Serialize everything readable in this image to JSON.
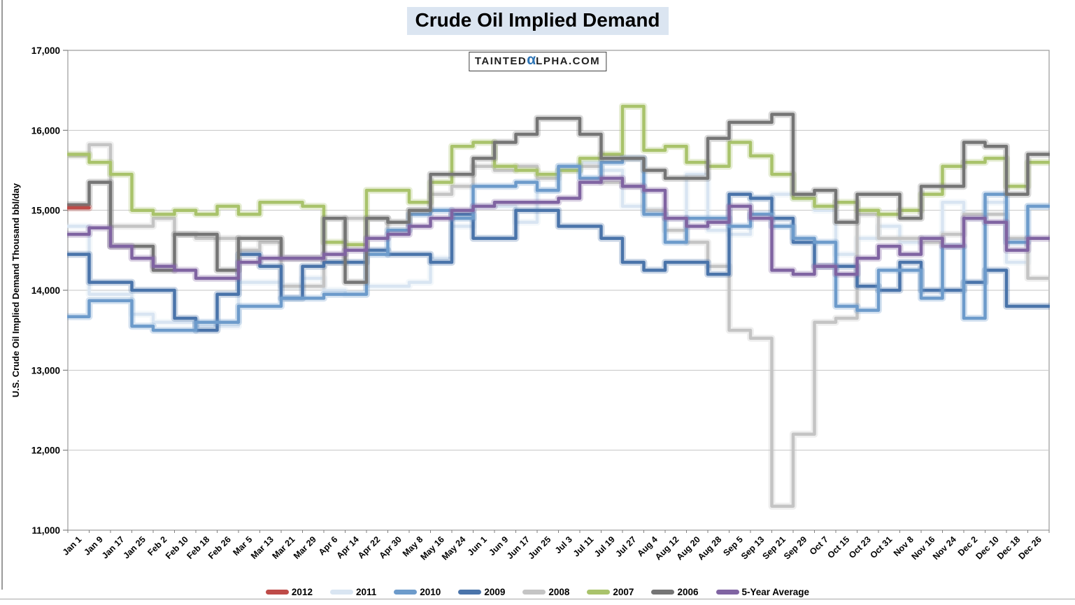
{
  "title": "Crude Oil Implied Demand",
  "watermark": {
    "prefix": "TAINTED",
    "alpha": "α",
    "suffix": "LPHA.COM"
  },
  "y_axis": {
    "title": "U.S. Crude Oil Implied Demand Thousand bbl/day",
    "min": 11000,
    "max": 17000,
    "tick_step": 1000,
    "tick_labels": [
      "11,000",
      "12,000",
      "13,000",
      "14,000",
      "15,000",
      "16,000",
      "17,000"
    ]
  },
  "chart_data": {
    "type": "line",
    "line_style": "step-mid",
    "grid": "horizontal",
    "legend_position": "bottom",
    "ylim": [
      11000,
      17000
    ],
    "categories": [
      "Jan 1",
      "Jan 9",
      "Jan 17",
      "Jan 25",
      "Feb 2",
      "Feb 10",
      "Feb 18",
      "Feb 26",
      "Mar 5",
      "Mar 13",
      "Mar 21",
      "Mar 29",
      "Apr 6",
      "Apr 14",
      "Apr 22",
      "Apr 30",
      "May 8",
      "May 16",
      "May 24",
      "Jun 1",
      "Jun 9",
      "Jun 17",
      "Jun 25",
      "Jul 3",
      "Jul 11",
      "Jul 19",
      "Jul 27",
      "Aug 4",
      "Aug 12",
      "Aug 20",
      "Aug 28",
      "Sep 5",
      "Sep 13",
      "Sep 21",
      "Sep 29",
      "Oct 7",
      "Oct 15",
      "Oct 23",
      "Oct 31",
      "Nov 8",
      "Nov 16",
      "Nov 24",
      "Dec 2",
      "Dec 10",
      "Dec 18",
      "Dec 26"
    ],
    "series": [
      {
        "name": "2012",
        "color": "#BE4B48",
        "values": [
          15030,
          null,
          null,
          null,
          null,
          null,
          null,
          null,
          null,
          null,
          null,
          null,
          null,
          null,
          null,
          null,
          null,
          null,
          null,
          null,
          null,
          null,
          null,
          null,
          null,
          null,
          null,
          null,
          null,
          null,
          null,
          null,
          null,
          null,
          null,
          null,
          null,
          null,
          null,
          null,
          null,
          null,
          null,
          null,
          null,
          null
        ]
      },
      {
        "name": "2011",
        "color": "#D9E5F2",
        "values": [
          14800,
          13950,
          13950,
          13700,
          13600,
          13600,
          13550,
          13550,
          14100,
          14100,
          14050,
          14150,
          14000,
          13950,
          14050,
          14050,
          14100,
          14400,
          14800,
          15050,
          15050,
          14850,
          15250,
          15550,
          15600,
          15500,
          15050,
          15000,
          14900,
          15450,
          14750,
          14700,
          15150,
          15200,
          15150,
          15000,
          14450,
          14650,
          14800,
          14600,
          14650,
          15100,
          14900,
          15100,
          14350,
          15050
        ]
      },
      {
        "name": "2010",
        "color": "#6D9BCB",
        "values": [
          13670,
          13870,
          13870,
          13550,
          13500,
          13500,
          13600,
          13600,
          13800,
          13800,
          13900,
          13900,
          13950,
          13950,
          14450,
          14750,
          14950,
          15000,
          14900,
          15300,
          15300,
          15350,
          15250,
          15550,
          15400,
          15600,
          15650,
          14950,
          14600,
          14900,
          14900,
          14800,
          14950,
          14800,
          14650,
          14600,
          13800,
          13750,
          14250,
          14250,
          13900,
          14550,
          13650,
          15200,
          14600,
          15050
        ]
      },
      {
        "name": "2009",
        "color": "#4A74AA",
        "values": [
          14450,
          14100,
          14100,
          14000,
          14000,
          13650,
          13500,
          13950,
          14450,
          14300,
          13900,
          14300,
          14350,
          14350,
          14500,
          14450,
          14450,
          14350,
          14950,
          14650,
          14650,
          15000,
          15000,
          14800,
          14800,
          14650,
          14350,
          14250,
          14350,
          14350,
          14200,
          15200,
          15150,
          14900,
          14600,
          14300,
          14300,
          14050,
          14000,
          14350,
          14000,
          14000,
          14100,
          14250,
          13800,
          13800
        ]
      },
      {
        "name": "2008",
        "color": "#C4C4C4",
        "values": [
          15680,
          15820,
          14800,
          14800,
          14900,
          14700,
          14650,
          14650,
          14500,
          14600,
          14050,
          14050,
          14350,
          14900,
          14900,
          14750,
          15000,
          15200,
          15300,
          15550,
          15500,
          15550,
          15400,
          15500,
          15550,
          15350,
          15300,
          15000,
          14750,
          14600,
          14300,
          13500,
          13400,
          11300,
          12200,
          13600,
          13650,
          14950,
          14650,
          14650,
          14600,
          14700,
          14950,
          14950,
          14650,
          14150
        ]
      },
      {
        "name": "2007",
        "color": "#A9C36B",
        "values": [
          15700,
          15600,
          15450,
          15000,
          14950,
          15000,
          14950,
          15050,
          14950,
          15100,
          15100,
          15050,
          14600,
          14570,
          15250,
          15250,
          15100,
          15350,
          15800,
          15850,
          15550,
          15500,
          15450,
          15500,
          15650,
          15700,
          16300,
          15750,
          15800,
          15600,
          15550,
          15850,
          15680,
          15450,
          15150,
          15050,
          15100,
          15000,
          14950,
          15000,
          15200,
          15550,
          15600,
          15650,
          15300,
          15600
        ]
      },
      {
        "name": "2006",
        "color": "#757575",
        "values": [
          15070,
          15350,
          14550,
          14550,
          14250,
          14700,
          14700,
          14250,
          14650,
          14650,
          14400,
          14400,
          14900,
          14100,
          14900,
          14850,
          15000,
          15450,
          15450,
          15650,
          15850,
          15950,
          16150,
          16150,
          15950,
          15650,
          15650,
          15500,
          15400,
          15400,
          15900,
          16100,
          16100,
          16200,
          15200,
          15250,
          14850,
          15200,
          15200,
          14900,
          15300,
          15300,
          15850,
          15800,
          15200,
          15700
        ]
      },
      {
        "name": "5-Year Average",
        "color": "#8064A2",
        "values": [
          14700,
          14780,
          14550,
          14400,
          14300,
          14250,
          14150,
          14150,
          14350,
          14400,
          14400,
          14400,
          14450,
          14500,
          14650,
          14700,
          14800,
          14900,
          15000,
          15050,
          15100,
          15100,
          15100,
          15150,
          15350,
          15400,
          15300,
          15250,
          14900,
          14800,
          14850,
          15050,
          14900,
          14250,
          14200,
          14300,
          14200,
          14400,
          14550,
          14450,
          14650,
          14550,
          14900,
          14850,
          14500,
          14650
        ]
      }
    ]
  },
  "style_colors": {
    "title_highlight": "#DBE5F1",
    "watermark_alpha": "#2E75B6",
    "gridline": "#C6C6C6",
    "axis_line": "#9a9a9a",
    "text": "#000000"
  }
}
